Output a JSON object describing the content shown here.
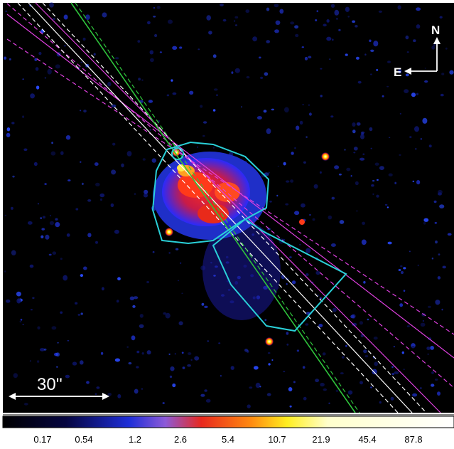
{
  "compass": {
    "north": "N",
    "east": "E"
  },
  "scale_bar": {
    "label": "30''"
  },
  "colorbar": {
    "ticks": [
      "0.17",
      "0.54",
      "1.2",
      "2.6",
      "5.4",
      "10.7",
      "21.9",
      "45.4",
      "87.8"
    ],
    "colors": [
      "#000000",
      "#0a0a7a",
      "#2a46ff",
      "#ffffff",
      "#ff2a1a",
      "#ffe600",
      "#ffffcc",
      "#ffffff"
    ]
  },
  "colors": {
    "background": "#000000",
    "region_outline": "#2ad0d8",
    "line_green": "#2fc43c",
    "line_white": "#ffffff",
    "line_magenta": "#e040e0"
  }
}
